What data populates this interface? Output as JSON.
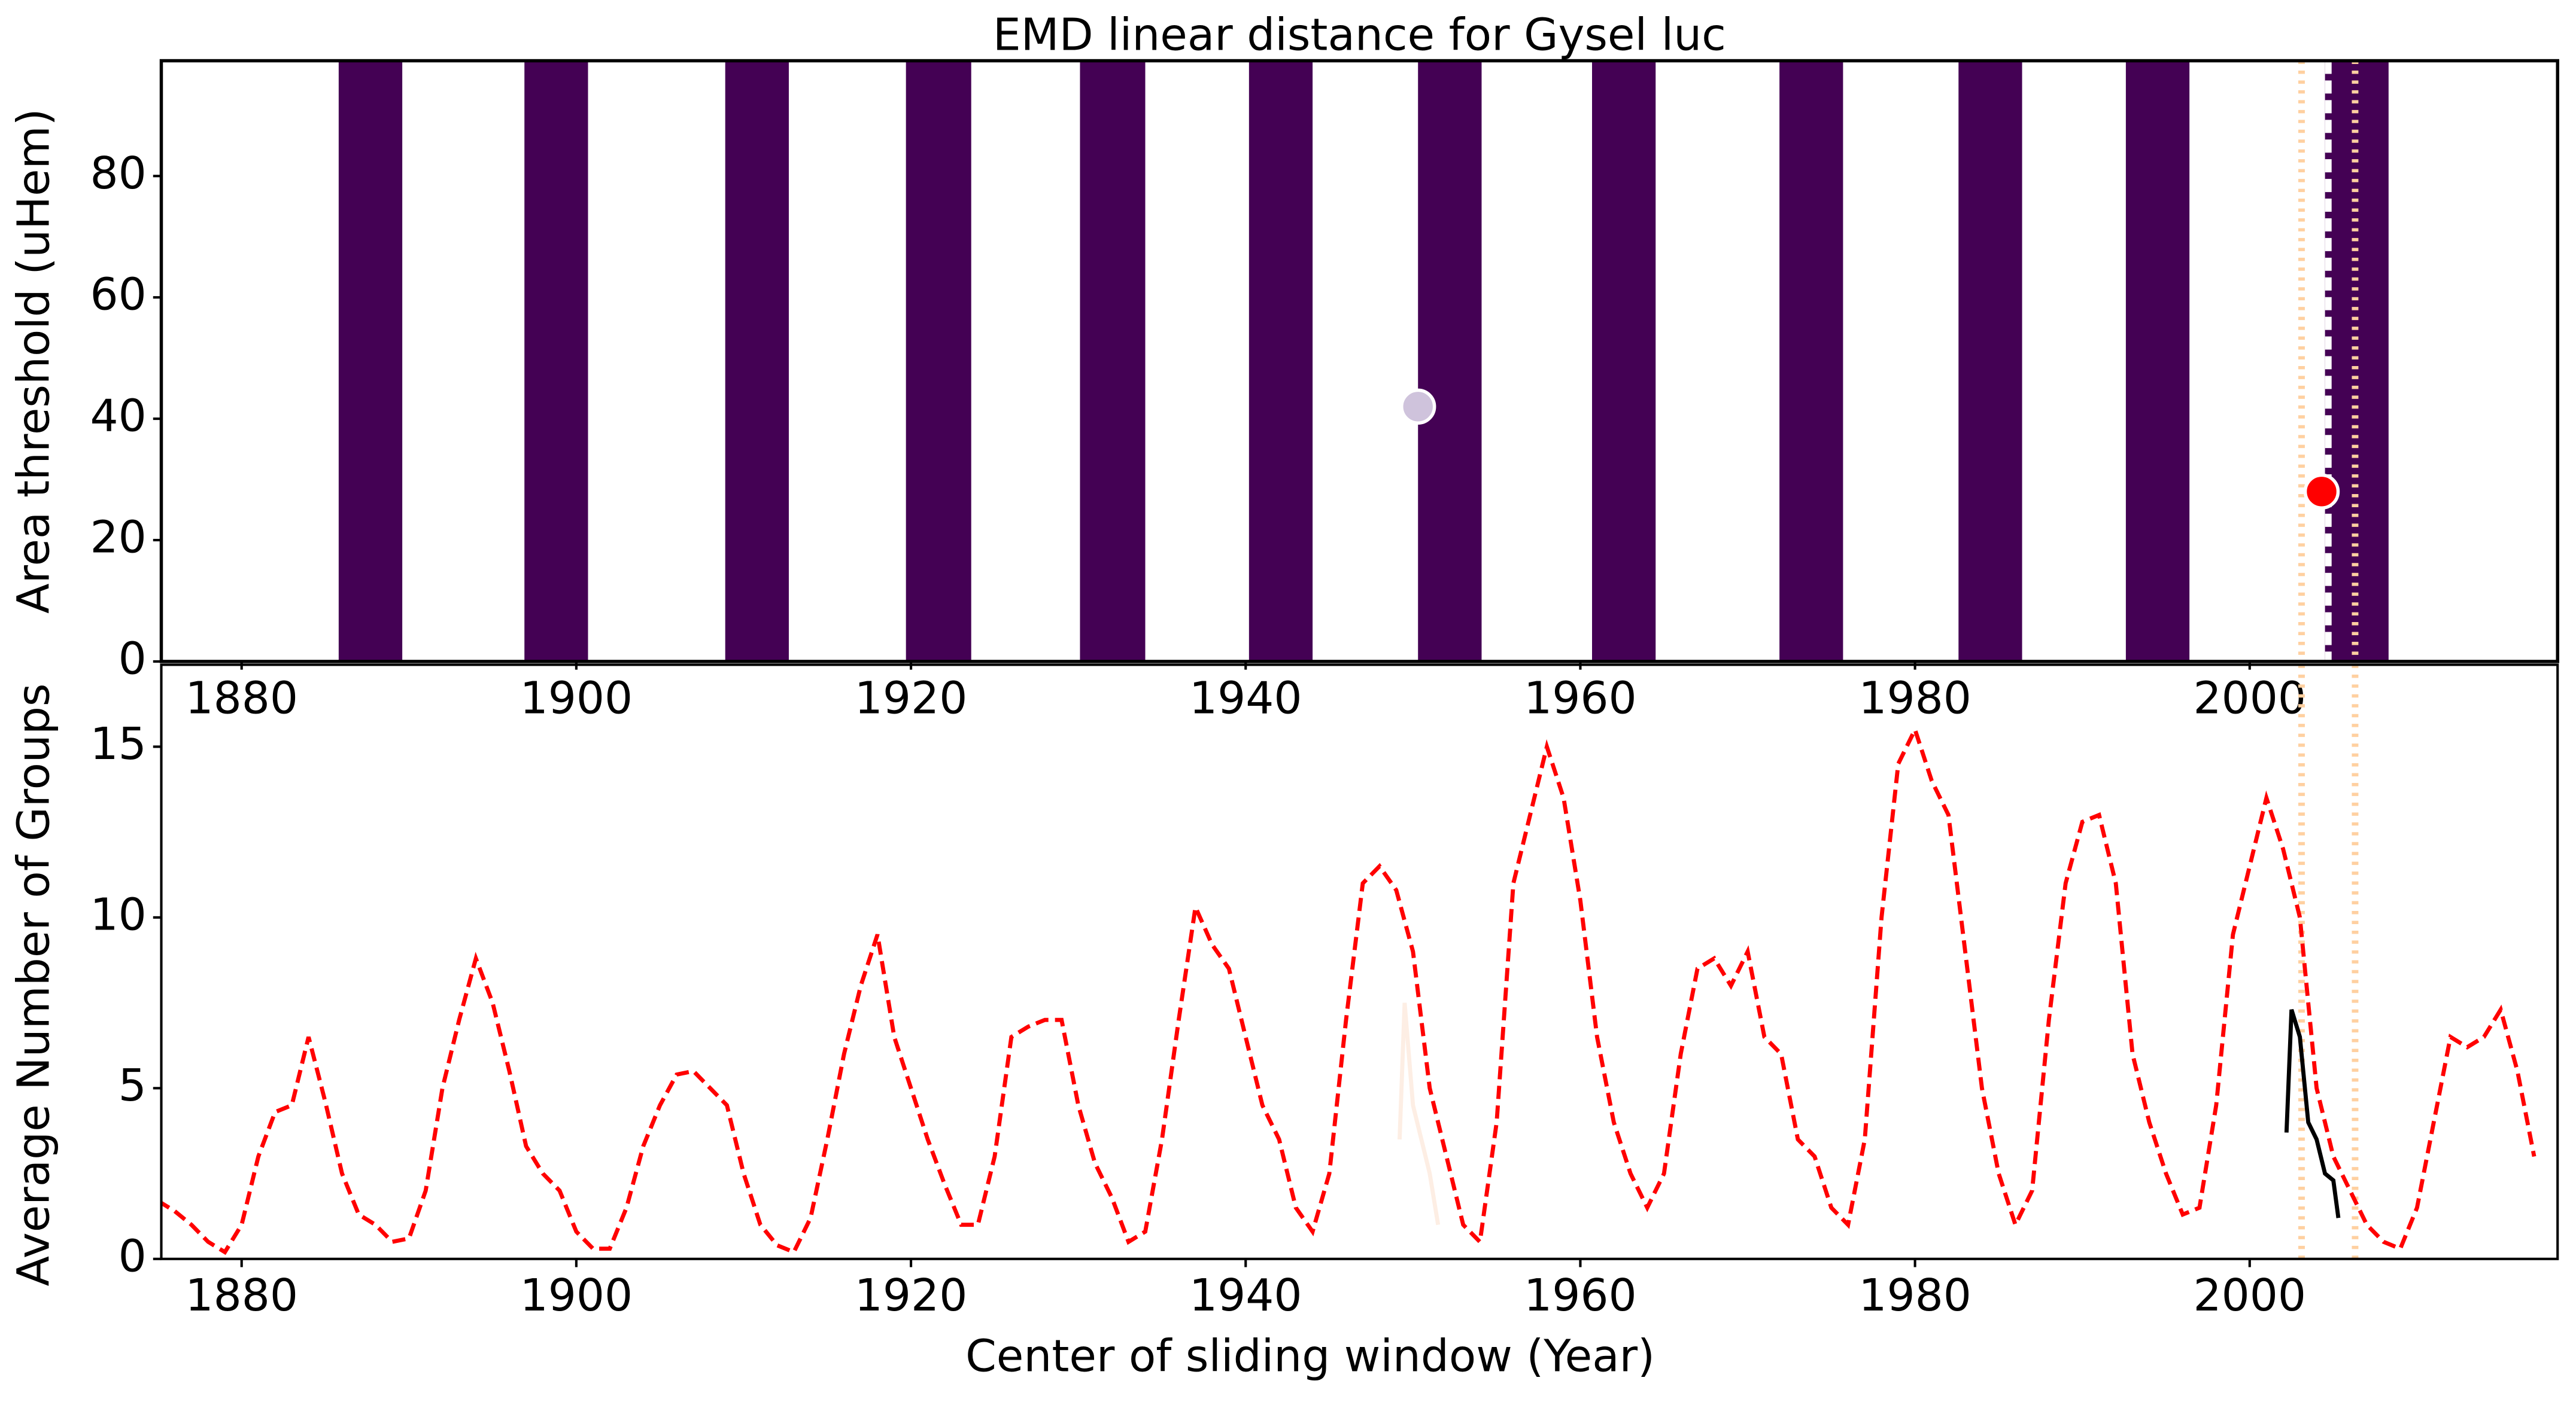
{
  "chart_data": [
    {
      "type": "scatter",
      "title": "EMD linear distance for Gysel luc",
      "ylabel": "Area threshold (uHem)",
      "xlim": [
        1875.2,
        2018.4
      ],
      "ylim": [
        0,
        99
      ],
      "xticks": [
        1880,
        1900,
        1920,
        1940,
        1960,
        1980,
        2000
      ],
      "yticks": [
        0,
        20,
        40,
        60,
        80
      ],
      "bands": {
        "color": "#440154",
        "x": [
          [
            1885.8,
            1889.6
          ],
          [
            1896.9,
            1900.7
          ],
          [
            1908.9,
            1912.7
          ],
          [
            1919.7,
            1923.6
          ],
          [
            1930.1,
            1934.0
          ],
          [
            1940.2,
            1944.0
          ],
          [
            1950.3,
            1954.1
          ],
          [
            1960.7,
            1964.5
          ],
          [
            1971.9,
            1975.7
          ],
          [
            1982.6,
            1986.4
          ],
          [
            1992.6,
            1996.4
          ],
          [
            2004.5,
            2008.3
          ]
        ]
      },
      "series": [
        {
          "color": "#cfc3dc",
          "x": [
            1950.3
          ],
          "values": [
            42
          ]
        },
        {
          "color": "#ff0000",
          "x": [
            2004.3
          ],
          "values": [
            28
          ]
        }
      ],
      "vlines": [
        {
          "x": 2003.1,
          "color": "#ffd0a0",
          "style": "dotted"
        },
        {
          "x": 2004.7,
          "color": "#ffffff",
          "style": "dashed"
        },
        {
          "x": 2006.3,
          "color": "#ffd0a0",
          "style": "dotted"
        }
      ]
    },
    {
      "type": "line",
      "xlabel": "Center of sliding window (Year)",
      "ylabel": "Average Number of Groups",
      "xlim": [
        1875.2,
        2018.4
      ],
      "ylim": [
        0,
        17.4
      ],
      "xticks": [
        1880,
        1900,
        1920,
        1940,
        1960,
        1980,
        2000
      ],
      "yticks": [
        0,
        5,
        10,
        15
      ],
      "series": [
        {
          "color": "#ff0000",
          "style": "dashed",
          "x": [
            1875,
            1876,
            1877,
            1878,
            1879,
            1880,
            1881,
            1882,
            1883,
            1884,
            1885,
            1886,
            1887,
            1888,
            1889,
            1890,
            1891,
            1892,
            1893,
            1894,
            1895,
            1896,
            1897,
            1898,
            1899,
            1900,
            1901,
            1902,
            1903,
            1904,
            1905,
            1906,
            1907,
            1908,
            1909,
            1910,
            1911,
            1912,
            1913,
            1914,
            1915,
            1916,
            1917,
            1918,
            1919,
            1920,
            1921,
            1922,
            1923,
            1924,
            1925,
            1926,
            1927,
            1928,
            1929,
            1930,
            1931,
            1932,
            1933,
            1934,
            1935,
            1936,
            1937,
            1938,
            1939,
            1940,
            1941,
            1942,
            1943,
            1944,
            1945,
            1946,
            1947,
            1948,
            1949,
            1950,
            1951,
            1952,
            1953,
            1954,
            1955,
            1956,
            1957,
            1958,
            1959,
            1960,
            1961,
            1962,
            1963,
            1964,
            1965,
            1966,
            1967,
            1968,
            1969,
            1970,
            1971,
            1972,
            1973,
            1974,
            1975,
            1976,
            1977,
            1978,
            1979,
            1980,
            1981,
            1982,
            1983,
            1984,
            1985,
            1986,
            1987,
            1988,
            1989,
            1990,
            1991,
            1992,
            1993,
            1994,
            1995,
            1996,
            1997,
            1998,
            1999,
            2000,
            2001,
            2002,
            2003,
            2004,
            2005,
            2006,
            2007,
            2008,
            2009,
            2010,
            2011,
            2012,
            2013,
            2014,
            2015,
            2016,
            2017
          ],
          "values": [
            1.7,
            1.4,
            1.0,
            0.5,
            0.2,
            1.0,
            3.0,
            4.3,
            4.5,
            6.5,
            4.6,
            2.5,
            1.3,
            1.0,
            0.5,
            0.6,
            2.0,
            5.0,
            7.0,
            8.8,
            7.5,
            5.5,
            3.3,
            2.5,
            2.0,
            0.8,
            0.3,
            0.3,
            1.5,
            3.3,
            4.5,
            5.4,
            5.5,
            5.0,
            4.5,
            2.5,
            1.0,
            0.4,
            0.2,
            1.2,
            3.5,
            6.0,
            8.0,
            9.5,
            6.5,
            5.0,
            3.5,
            2.2,
            1.0,
            1.0,
            3.0,
            6.5,
            6.8,
            7.0,
            7.0,
            4.5,
            2.8,
            1.8,
            0.5,
            0.8,
            3.5,
            7.0,
            10.3,
            9.2,
            8.5,
            6.5,
            4.5,
            3.5,
            1.5,
            0.8,
            2.5,
            7.0,
            11.0,
            11.5,
            10.8,
            9.0,
            5.0,
            3.0,
            1.0,
            0.5,
            4.0,
            11.0,
            13.0,
            15.0,
            13.5,
            10.5,
            6.5,
            4.0,
            2.5,
            1.5,
            2.5,
            6.0,
            8.5,
            8.8,
            8.0,
            9.0,
            6.5,
            6.0,
            3.5,
            3.0,
            1.5,
            1.0,
            3.5,
            10.0,
            14.5,
            15.5,
            14.0,
            13.0,
            9.0,
            5.0,
            2.5,
            1.0,
            2.0,
            7.0,
            11.0,
            12.8,
            13.0,
            11.0,
            6.0,
            4.0,
            2.5,
            1.3,
            1.5,
            4.5,
            9.5,
            11.5,
            13.5,
            12.0,
            10.0,
            5.0,
            3.0,
            2.0,
            1.0,
            0.5,
            0.3,
            1.5,
            4.0,
            6.5,
            6.2,
            6.5,
            7.3,
            5.5,
            3.0
          ]
        },
        {
          "color": "#fdeee4",
          "style": "solid",
          "x": [
            1949.2,
            1949.5,
            1950,
            1950.5,
            1951,
            1951.5
          ],
          "values": [
            3.5,
            7.5,
            4.5,
            3.5,
            2.5,
            1.0
          ]
        },
        {
          "color": "#000000",
          "style": "solid",
          "x": [
            2002.2,
            2002.5,
            2003,
            2003.5,
            2004,
            2004.5,
            2005,
            2005.3
          ],
          "values": [
            3.7,
            7.3,
            6.5,
            4.0,
            3.5,
            2.5,
            2.3,
            1.2
          ]
        }
      ],
      "vlines": [
        {
          "x": 2003.1,
          "color": "#ffd0a0",
          "style": "dotted"
        },
        {
          "x": 2006.3,
          "color": "#ffd0a0",
          "style": "dotted"
        }
      ]
    }
  ]
}
